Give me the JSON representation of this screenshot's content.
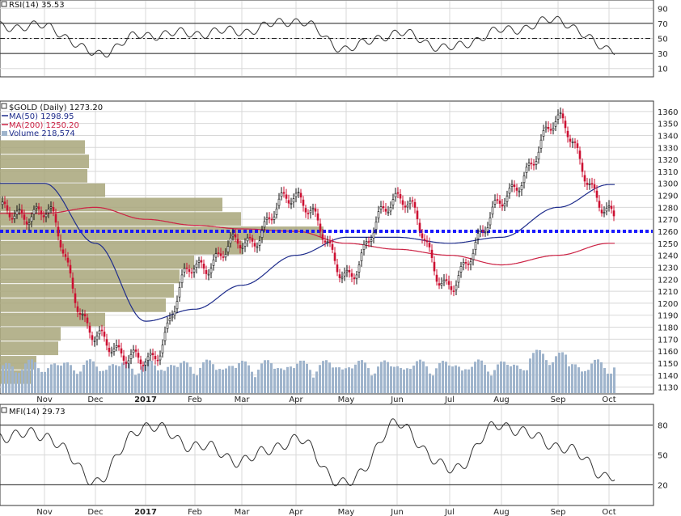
{
  "rsi_panel": {
    "label": "RSI(14) 35.53",
    "ticks": [
      "90",
      "70",
      "50",
      "30",
      "10"
    ]
  },
  "price_panel": {
    "label": "$GOLD (Daily) 1273.20",
    "ma50_label": "MA(50) 1298.95",
    "ma200_label": "MA(200) 1250.20",
    "volume_label": "Volume 218,574",
    "ticks": [
      "1360",
      "1350",
      "1340",
      "1330",
      "1320",
      "1310",
      "1300",
      "1290",
      "1280",
      "1270",
      "1260",
      "1250",
      "1240",
      "1230",
      "1220",
      "1210",
      "1200",
      "1190",
      "1180",
      "1170",
      "1160",
      "1150",
      "1140",
      "1130"
    ]
  },
  "mfi_panel": {
    "label": "MFI(14) 29.73",
    "ticks": [
      "80",
      "50",
      "20"
    ]
  },
  "months": [
    "Nov",
    "Dec",
    "2017",
    "Feb",
    "Mar",
    "Apr",
    "May",
    "Jun",
    "Jul",
    "Aug",
    "Sep",
    "Oct"
  ],
  "colors": {
    "up_candle": "#111111",
    "down_candle": "#cc1133",
    "ma50": "#1f2d8c",
    "ma200": "#cc2244",
    "volume": "#9fb4cc",
    "volume_profile": "#a8a67a",
    "dotted_line": "#1a1aff",
    "grid": "#d8d8d8"
  },
  "chart_data": [
    {
      "type": "line",
      "title": "RSI(14) 35.53",
      "ylim": [
        0,
        100
      ],
      "reference_lines": [
        30,
        50,
        70
      ],
      "x": [
        "Nov",
        "Dec",
        "2017",
        "Feb",
        "Mar",
        "Apr",
        "May",
        "Jun",
        "Jul",
        "Aug",
        "Sep",
        "Oct"
      ],
      "series": [
        {
          "name": "RSI(14)",
          "values": [
            66,
            30,
            55,
            57,
            60,
            74,
            37,
            57,
            37,
            60,
            74,
            36
          ]
        }
      ]
    },
    {
      "type": "line",
      "title": "$GOLD (Daily) 1273.20",
      "ylim": [
        1125,
        1368
      ],
      "x": [
        "Nov",
        "Dec",
        "2017",
        "Feb",
        "Mar",
        "Apr",
        "May",
        "Jun",
        "Jul",
        "Aug",
        "Sep",
        "Oct"
      ],
      "series": [
        {
          "name": "$GOLD (Daily)",
          "values": [
            1275,
            1170,
            1150,
            1230,
            1250,
            1290,
            1225,
            1290,
            1215,
            1285,
            1350,
            1273
          ]
        },
        {
          "name": "MA(50)",
          "values": [
            1300,
            1250,
            1185,
            1195,
            1215,
            1240,
            1255,
            1255,
            1250,
            1255,
            1280,
            1299
          ]
        },
        {
          "name": "MA(200)",
          "values": [
            1275,
            1280,
            1270,
            1265,
            1262,
            1260,
            1250,
            1245,
            1240,
            1232,
            1240,
            1250
          ]
        }
      ],
      "horizontal_line": 1260,
      "volume_label": "Volume 218,574"
    },
    {
      "type": "line",
      "title": "MFI(14) 29.73",
      "ylim": [
        0,
        100
      ],
      "reference_lines": [
        20,
        80
      ],
      "x": [
        "Nov",
        "Dec",
        "2017",
        "Feb",
        "Mar",
        "Apr",
        "May",
        "Jun",
        "Jul",
        "Aug",
        "Sep",
        "Oct"
      ],
      "series": [
        {
          "name": "MFI(14)",
          "values": [
            70,
            25,
            80,
            60,
            45,
            65,
            20,
            80,
            35,
            80,
            60,
            30
          ]
        }
      ]
    }
  ]
}
